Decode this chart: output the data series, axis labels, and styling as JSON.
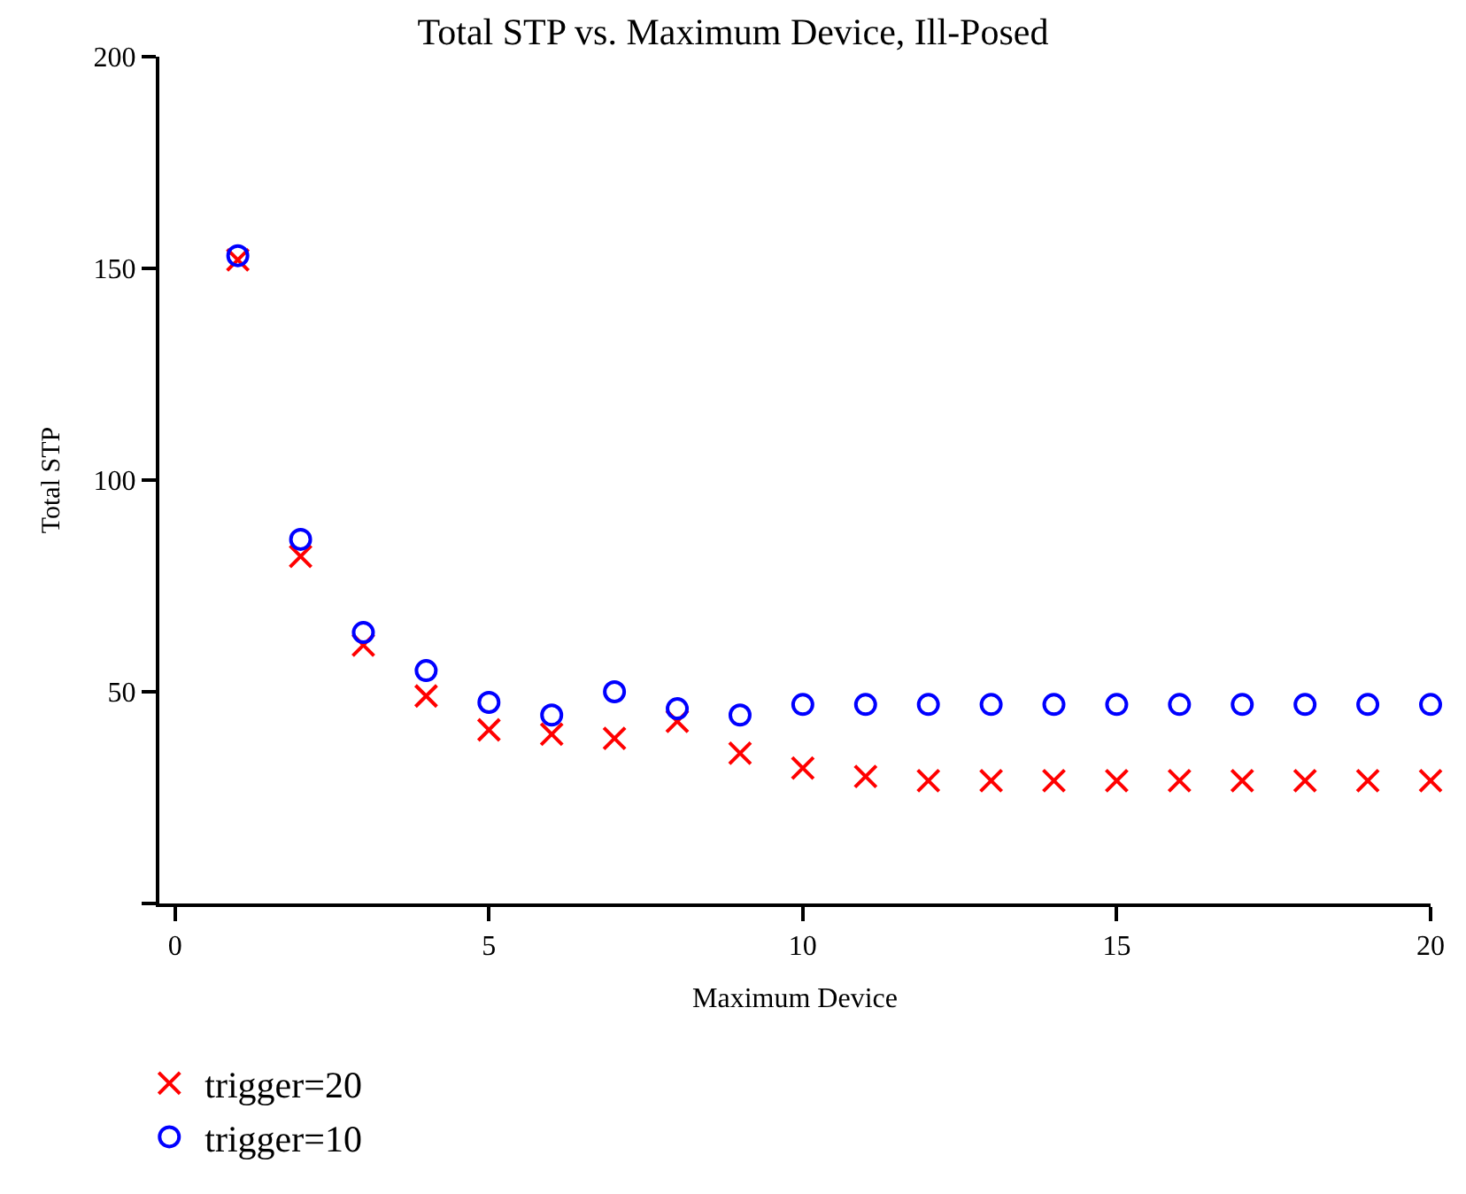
{
  "chart_data": {
    "type": "scatter",
    "title": "Total STP vs. Maximum Device, Ill-Posed",
    "xlabel": "Maximum Device",
    "ylabel": "Total STP",
    "x": [
      1,
      2,
      3,
      4,
      5,
      6,
      7,
      8,
      9,
      10,
      11,
      12,
      13,
      14,
      15,
      16,
      17,
      18,
      19,
      20
    ],
    "series": [
      {
        "name": "trigger=20",
        "color": "#ff0000",
        "marker": "cross",
        "values": [
          152,
          82,
          61,
          49,
          41,
          40,
          39,
          43,
          35.5,
          32,
          30,
          29,
          29,
          29,
          29,
          29,
          29,
          29,
          29,
          29
        ]
      },
      {
        "name": "trigger=10",
        "color": "#0000ff",
        "marker": "circle",
        "values": [
          153,
          86,
          64,
          55,
          47.5,
          44.5,
          50,
          46,
          44.5,
          47,
          47,
          47,
          47,
          47,
          47,
          47,
          47,
          47,
          47,
          47
        ]
      }
    ],
    "xlim": [
      -0.25,
      20
    ],
    "xticks": [
      0,
      5,
      10,
      15,
      20
    ],
    "ylim": [
      0,
      200
    ],
    "yticks": [
      {
        "value": 0,
        "label": null
      },
      50,
      100,
      150,
      200
    ],
    "legend": "bottom left"
  }
}
